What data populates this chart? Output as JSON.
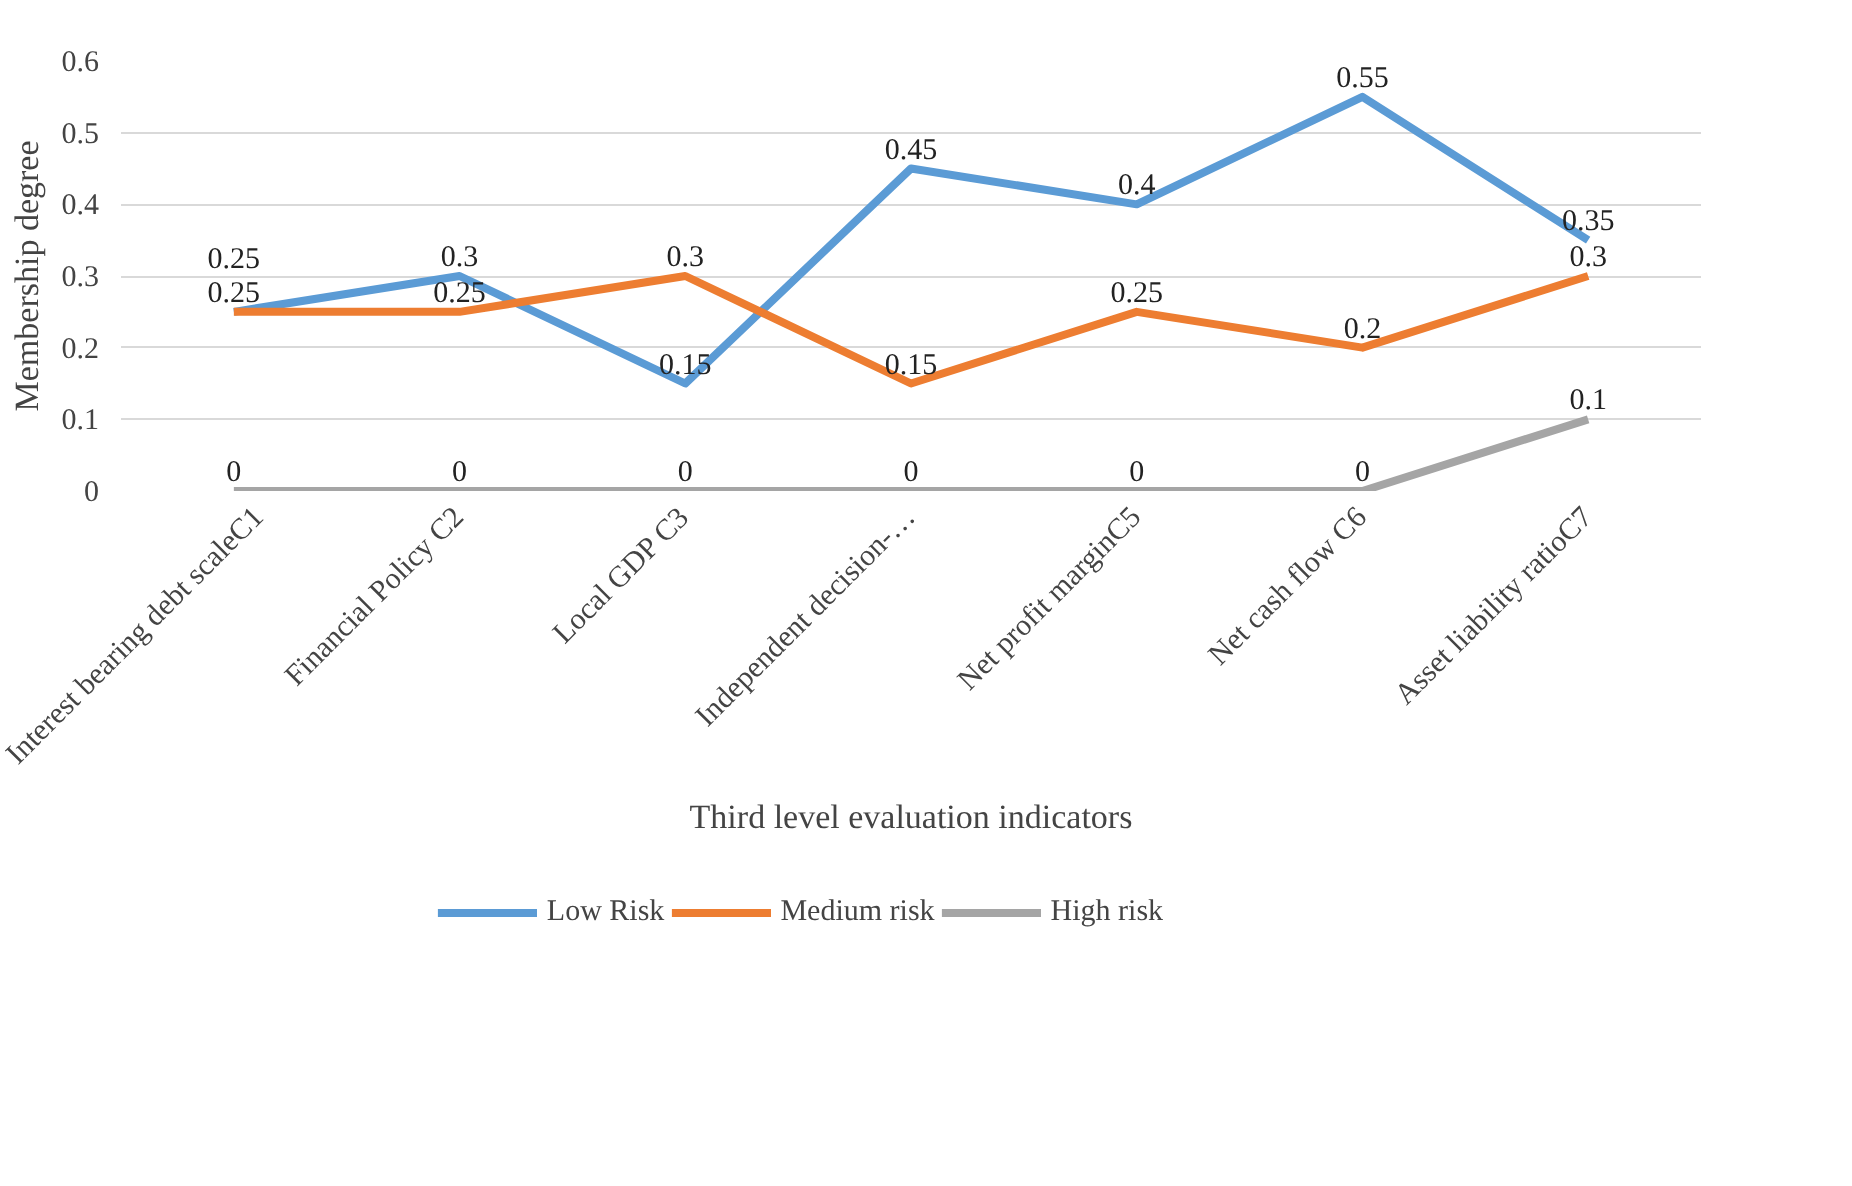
{
  "chart_data": {
    "type": "line",
    "xlabel": "Third level evaluation indicators",
    "ylabel": "Membership degree",
    "categories": [
      "Interest bearing debt scaleC1",
      "Financial Policy C2",
      "Local GDP C3",
      "Independent decision-…",
      "Net profit marginC5",
      "Net cash flow C6",
      "Asset liability ratioC7"
    ],
    "series": [
      {
        "name": "Low Risk",
        "color": "#5b9bd5",
        "values": [
          0.25,
          0.3,
          0.15,
          0.45,
          0.4,
          0.55,
          0.35
        ]
      },
      {
        "name": "Medium risk",
        "color": "#ed7d31",
        "values": [
          0.25,
          0.25,
          0.3,
          0.15,
          0.25,
          0.2,
          0.3
        ]
      },
      {
        "name": "High risk",
        "color": "#a5a5a5",
        "values": [
          0,
          0,
          0,
          0,
          0,
          0,
          0.1
        ]
      }
    ],
    "ylim": [
      0,
      0.6
    ],
    "yticks": [
      0,
      0.1,
      0.2,
      0.3,
      0.4,
      0.5,
      0.6
    ],
    "grid": "y",
    "legend": "bottom",
    "data_labels": true,
    "marker": "none"
  }
}
